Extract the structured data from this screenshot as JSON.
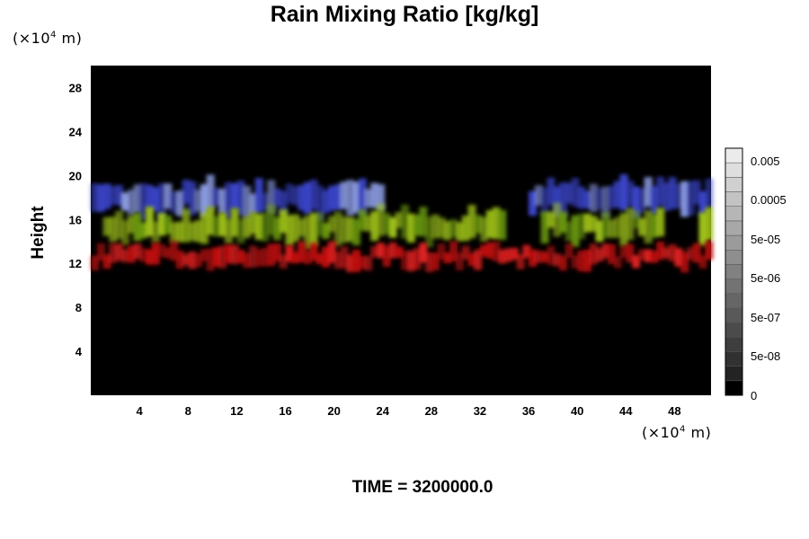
{
  "chart_data": {
    "type": "heatmap",
    "title": "Rain Mixing Ratio [kg/kg]",
    "ylabel": "Height",
    "xlabel": "",
    "x_unit_prefix": "(×10",
    "x_unit_exp": "4",
    "x_unit_suffix": " m)",
    "y_unit_prefix": "(×10",
    "y_unit_exp": "4",
    "y_unit_suffix": " m)",
    "xlim": [
      0,
      51
    ],
    "ylim": [
      0,
      30
    ],
    "x_ticks": [
      "4",
      "8",
      "12",
      "16",
      "20",
      "24",
      "28",
      "32",
      "36",
      "40",
      "44",
      "48"
    ],
    "x_tick_values": [
      4,
      8,
      12,
      16,
      20,
      24,
      28,
      32,
      36,
      40,
      44,
      48
    ],
    "y_ticks": [
      "4",
      "8",
      "12",
      "16",
      "20",
      "24",
      "28"
    ],
    "y_tick_values": [
      4,
      8,
      12,
      16,
      20,
      24,
      28
    ],
    "background_color": "#000000",
    "layers": [
      {
        "color": "#3a44c8",
        "alt_color": "#8a9ae0",
        "y_center": 18.0,
        "thickness": 2.6,
        "segments": [
          [
            0,
            24
          ],
          [
            36,
            51
          ]
        ]
      },
      {
        "color": "#9fc21a",
        "alt_color": "#6a9a10",
        "y_center": 15.4,
        "thickness": 2.4,
        "segments": [
          [
            1,
            34
          ],
          [
            37,
            47
          ],
          [
            50,
            51
          ]
        ]
      },
      {
        "color": "#c01010",
        "alt_color": "#e02020",
        "y_center": 12.6,
        "thickness": 1.6,
        "segments": [
          [
            0,
            51
          ]
        ]
      }
    ],
    "colorbar": {
      "tick_labels": [
        "0.005",
        "0.0005",
        "5e-05",
        "5e-06",
        "5e-07",
        "5e-08",
        "0"
      ],
      "levels": 17
    },
    "footer": "TIME = 3200000.0"
  }
}
